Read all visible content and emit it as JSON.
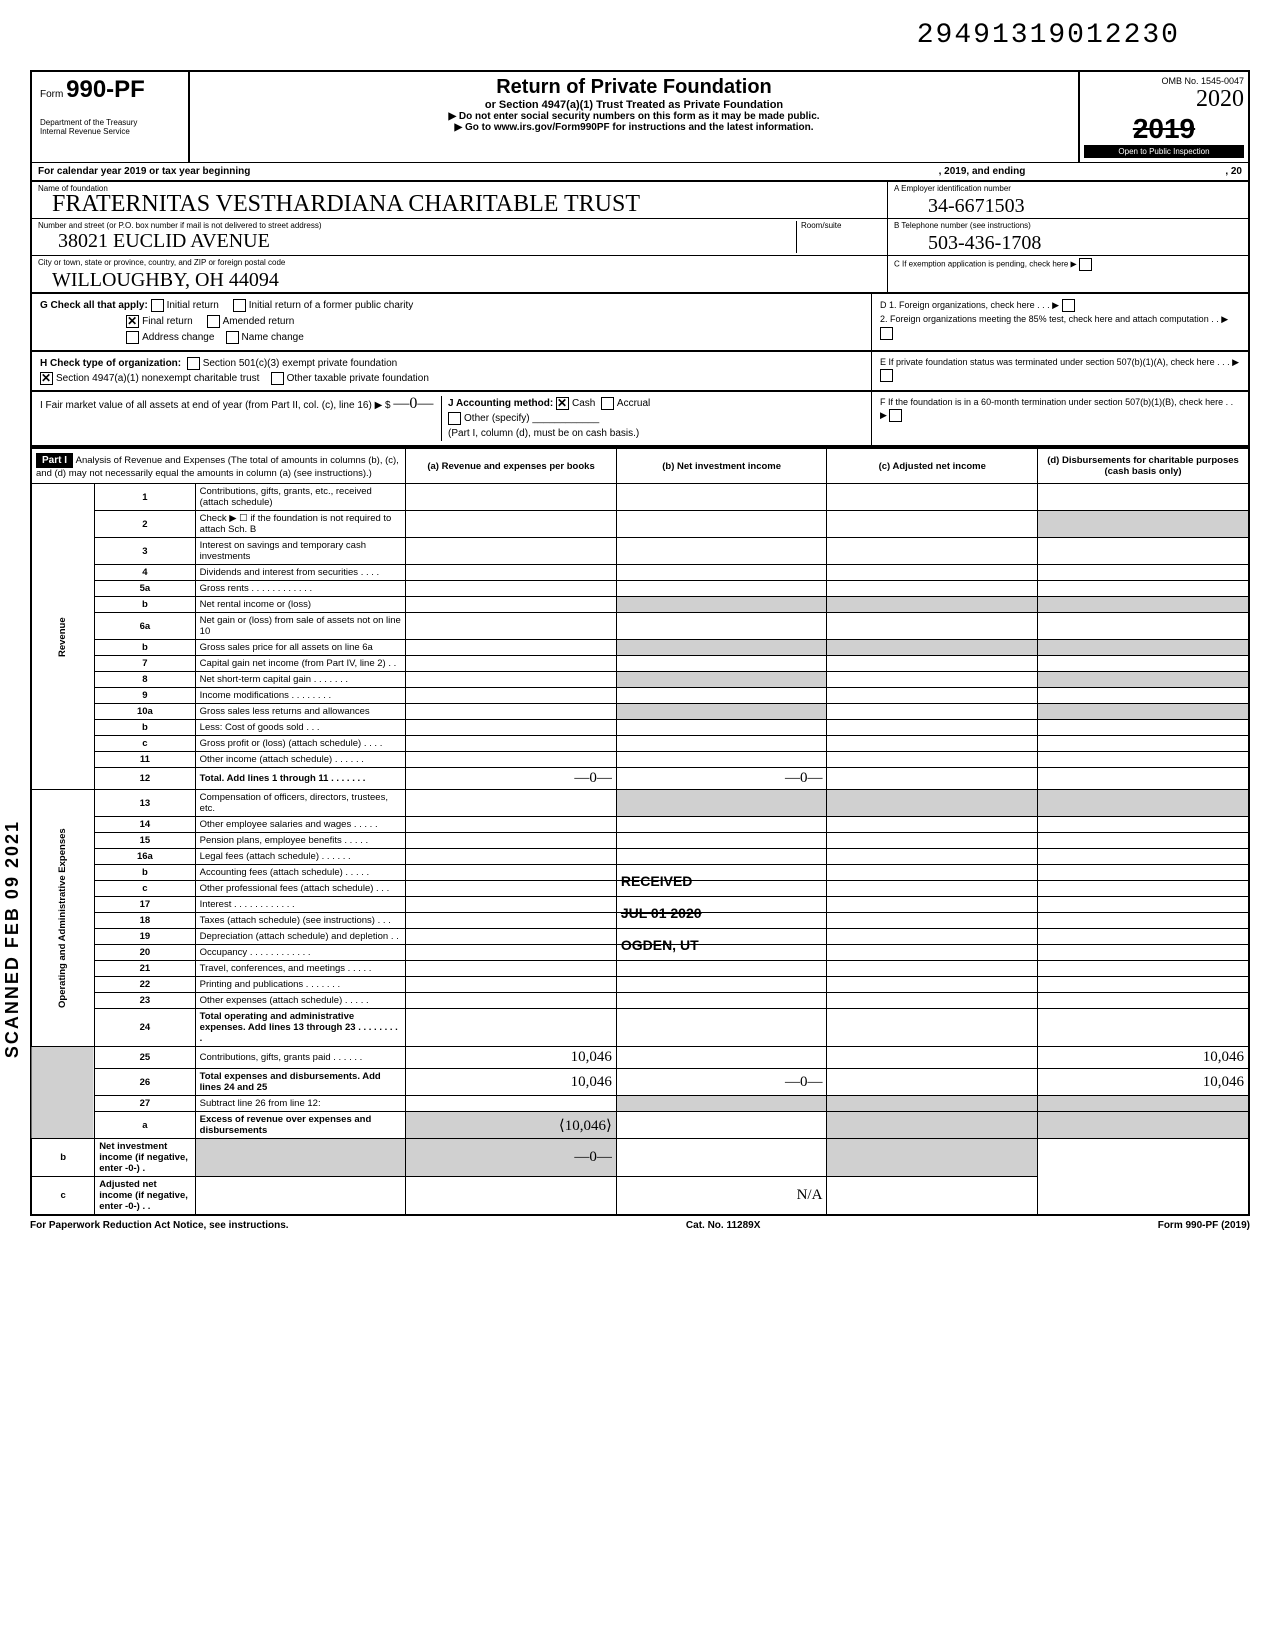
{
  "top": {
    "dln": "29491319012230",
    "handwritten_year": "2020"
  },
  "header": {
    "form_label": "Form",
    "form_number": "990-PF",
    "dept": "Department of the Treasury",
    "irs": "Internal Revenue Service",
    "title": "Return of Private Foundation",
    "subtitle": "or Section 4947(a)(1) Trust Treated as Private Foundation",
    "instr1": "▶ Do not enter social security numbers on this form as it may be made public.",
    "instr2": "▶ Go to www.irs.gov/Form990PF for instructions and the latest information.",
    "omb": "OMB No. 1545-0047",
    "year": "2019",
    "public": "Open to Public Inspection"
  },
  "calendar": {
    "prefix": "For calendar year 2019 or tax year beginning",
    "mid": ", 2019, and ending",
    "suffix": ", 20"
  },
  "entity": {
    "name_label": "Name of foundation",
    "name_hw": "FRATERNITAS VESTHARDIANA CHARITABLE TRUST",
    "addr_label": "Number and street (or P.O. box number if mail is not delivered to street address)",
    "addr_hw": "38021 EUCLID AVENUE",
    "room_label": "Room/suite",
    "city_label": "City or town, state or province, country, and ZIP or foreign postal code",
    "city_hw": "WILLOUGHBY, OH 44094",
    "ein_label": "A  Employer identification number",
    "ein_hw": "34-6671503",
    "tel_label": "B  Telephone number (see instructions)",
    "tel_hw": "503-436-1708",
    "exempt_label": "C  If exemption application is pending, check here ▶"
  },
  "g": {
    "label": "G  Check all that apply:",
    "initial": "Initial return",
    "initial_former": "Initial return of a former public charity",
    "final": "Final return",
    "amended": "Amended return",
    "address": "Address change",
    "name": "Name change"
  },
  "d": {
    "d1": "D  1. Foreign organizations, check here  .   .   . ▶",
    "d2": "2. Foreign organizations meeting the 85% test, check here and attach computation    .   . ▶"
  },
  "h": {
    "label": "H  Check type of organization:",
    "s501": "Section 501(c)(3) exempt private foundation",
    "s4947": "Section 4947(a)(1) nonexempt charitable trust",
    "other": "Other taxable private foundation"
  },
  "e": {
    "text": "E  If private foundation status was terminated under section 507(b)(1)(A), check here   .   .   . ▶"
  },
  "i": {
    "label": "I   Fair market value of all assets at end of year (from Part II, col. (c), line 16) ▶ $",
    "hw_val": "—0—"
  },
  "j": {
    "label": "J   Accounting method:",
    "cash": "Cash",
    "accrual": "Accrual",
    "other": "Other (specify)",
    "note": "(Part I, column (d), must be on cash basis.)"
  },
  "f": {
    "text": "F  If the foundation is in a 60-month termination under section 507(b)(1)(B), check here    .   . ▶"
  },
  "part1": {
    "label": "Part I",
    "title": "Analysis of Revenue and Expenses (The total of amounts in columns (b), (c), and (d) may not necessarily equal the amounts in column (a) (see instructions).)",
    "col_a": "(a) Revenue and expenses per books",
    "col_b": "(b) Net investment income",
    "col_c": "(c) Adjusted net income",
    "col_d": "(d) Disbursements for charitable purposes (cash basis only)"
  },
  "rows": [
    {
      "n": "1",
      "d": "Contributions, gifts, grants, etc., received (attach schedule)"
    },
    {
      "n": "2",
      "d": "Check ▶ ☐ if the foundation is not required to attach Sch. B"
    },
    {
      "n": "3",
      "d": "Interest on savings and temporary cash investments"
    },
    {
      "n": "4",
      "d": "Dividends and interest from securities   .   .   .   ."
    },
    {
      "n": "5a",
      "d": "Gross rents .   .   .   .   .   .   .   .   .   .   .   ."
    },
    {
      "n": "b",
      "d": "Net rental income or (loss)"
    },
    {
      "n": "6a",
      "d": "Net gain or (loss) from sale of assets not on line 10"
    },
    {
      "n": "b",
      "d": "Gross sales price for all assets on line 6a"
    },
    {
      "n": "7",
      "d": "Capital gain net income (from Part IV, line 2)  .  ."
    },
    {
      "n": "8",
      "d": "Net short-term capital gain .   .   .   .   .   .   ."
    },
    {
      "n": "9",
      "d": "Income modifications   .   .   .   .   .   .   .   ."
    },
    {
      "n": "10a",
      "d": "Gross sales less returns and allowances"
    },
    {
      "n": "b",
      "d": "Less: Cost of goods sold   .   .   ."
    },
    {
      "n": "c",
      "d": "Gross profit or (loss) (attach schedule)  .   .   .   ."
    },
    {
      "n": "11",
      "d": "Other income (attach schedule)   .   .   .   .   .   ."
    },
    {
      "n": "12",
      "d": "Total. Add lines 1 through 11 .   .   .   .   .   .   .",
      "bold": true,
      "a": "—0—",
      "b": "—0—"
    },
    {
      "n": "13",
      "d": "Compensation of officers, directors, trustees, etc."
    },
    {
      "n": "14",
      "d": "Other employee salaries and wages .   .   .   .   ."
    },
    {
      "n": "15",
      "d": "Pension plans, employee benefits   .   .   .   .   ."
    },
    {
      "n": "16a",
      "d": "Legal fees (attach schedule)   .   .   .   .   .   ."
    },
    {
      "n": "b",
      "d": "Accounting fees (attach schedule)   .   .   .   .   ."
    },
    {
      "n": "c",
      "d": "Other professional fees (attach schedule)  .   .   ."
    },
    {
      "n": "17",
      "d": "Interest   .   .   .   .   .   .   .   .   .   .   .   ."
    },
    {
      "n": "18",
      "d": "Taxes (attach schedule) (see instructions) .   .   ."
    },
    {
      "n": "19",
      "d": "Depreciation (attach schedule) and depletion .   ."
    },
    {
      "n": "20",
      "d": "Occupancy .   .   .   .   .   .   .   .   .   .   .   ."
    },
    {
      "n": "21",
      "d": "Travel, conferences, and meetings  .   .   .   .   ."
    },
    {
      "n": "22",
      "d": "Printing and publications   .   .   .   .   .   .   ."
    },
    {
      "n": "23",
      "d": "Other expenses (attach schedule)   .   .   .   .   ."
    },
    {
      "n": "24",
      "d": "Total operating and administrative expenses. Add lines 13 through 23 .   .   .   .   .   .   .   .   .",
      "bold": true
    },
    {
      "n": "25",
      "d": "Contributions, gifts, grants paid   .   .   .   .   .   .",
      "a": "10,046",
      "dd": "10,046"
    },
    {
      "n": "26",
      "d": "Total expenses and disbursements. Add lines 24 and 25",
      "bold": true,
      "a": "10,046",
      "b": "—0—",
      "dd": "10,046"
    },
    {
      "n": "27",
      "d": "Subtract line 26 from line 12:"
    },
    {
      "n": "a",
      "d": "Excess of revenue over expenses and disbursements",
      "bold": true,
      "a": "⟨10,046⟩"
    },
    {
      "n": "b",
      "d": "Net investment income (if negative, enter -0-)  .",
      "bold": true,
      "b": "—0—"
    },
    {
      "n": "c",
      "d": "Adjusted net income (if negative, enter -0-)  .   .",
      "bold": true,
      "c": "N/A"
    }
  ],
  "side_labels": {
    "revenue": "Revenue",
    "expenses": "Operating and Administrative Expenses"
  },
  "stamp": {
    "received": "RECEIVED",
    "date": "JUL 01 2020",
    "office": "OGDEN, UT",
    "scanned": "SCANNED FEB 09 2021"
  },
  "footer": {
    "left": "For Paperwork Reduction Act Notice, see instructions.",
    "center": "Cat. No. 11289X",
    "right": "Form 990-PF (2019)"
  }
}
